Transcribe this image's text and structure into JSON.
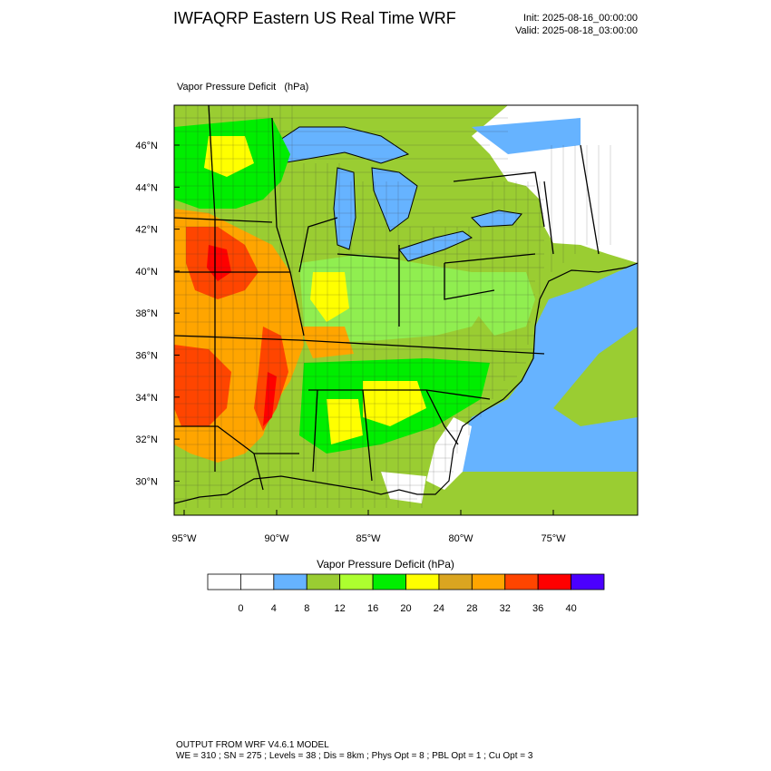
{
  "header": {
    "title": "IWFAQRP Eastern US Real Time WRF",
    "init": "Init: 2025-08-16_00:00:00",
    "valid": "Valid: 2025-08-18_03:00:00"
  },
  "map": {
    "field_label": "Vapor Pressure Deficit   (hPa)",
    "lat_labels": [
      "46°N",
      "44°N",
      "42°N",
      "40°N",
      "38°N",
      "36°N",
      "34°N",
      "32°N",
      "30°N"
    ],
    "lon_labels": [
      "95°W",
      "90°W",
      "85°W",
      "80°W",
      "75°W"
    ],
    "colors": {
      "ocean": "#66b3ff",
      "low_vpd": "#9acd32",
      "mid_vpd": "#90ee50",
      "green": "#00ee00",
      "yellow": "#ffff00",
      "orange": "#ffa500",
      "red_orange": "#ff4500",
      "red": "#ff0000",
      "white": "#ffffff"
    }
  },
  "colorbar": {
    "title": "Vapor Pressure Deficit  (hPa)",
    "colors": [
      "#ffffff",
      "#ffffff",
      "#66b3ff",
      "#9acd32",
      "#adff2f",
      "#00ee00",
      "#ffff00",
      "#daa520",
      "#ffa500",
      "#ff4500",
      "#ff0000",
      "#4b00ff"
    ],
    "ticks": [
      "0",
      "4",
      "8",
      "12",
      "16",
      "20",
      "24",
      "28",
      "32",
      "36",
      "40"
    ]
  },
  "footer": {
    "line1": "OUTPUT FROM WRF V4.6.1 MODEL",
    "line2": "WE = 310 ; SN = 275 ; Levels = 38 ; Dis = 8km ; Phys Opt = 8 ; PBL Opt = 1 ; Cu Opt = 3"
  }
}
